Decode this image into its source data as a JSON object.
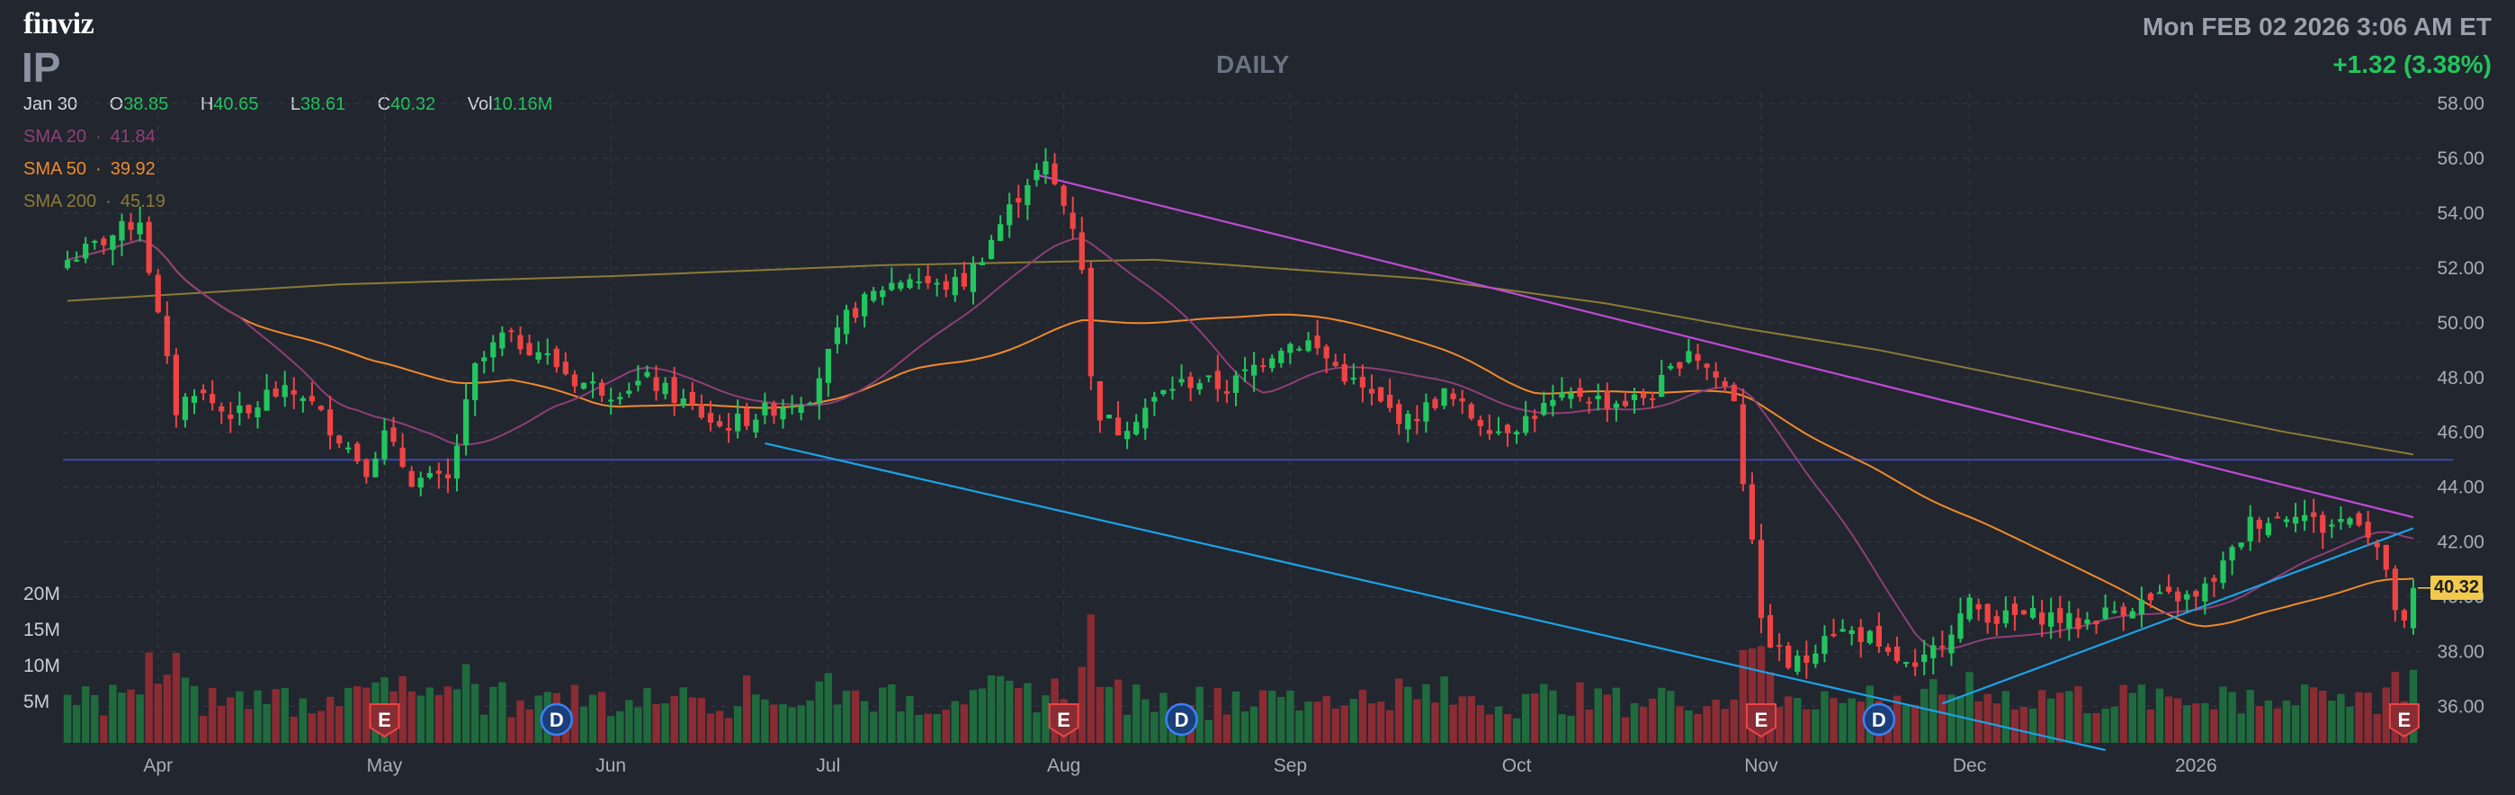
{
  "header": {
    "logo": "finviz",
    "ticker": "IP",
    "period": "DAILY",
    "datetime": "Mon FEB 02 2026 3:06 AM ET",
    "change": "+1.32 (3.38%)"
  },
  "ohlc": {
    "date": "Jan 30",
    "o_label": "O",
    "o": "38.85",
    "h_label": "H",
    "h": "40.65",
    "l_label": "L",
    "l": "38.61",
    "c_label": "C",
    "c": "40.32",
    "vol_label": "Vol",
    "vol": "10.16M"
  },
  "sma": [
    {
      "label": "SMA 20",
      "sep": "·",
      "value": "41.84",
      "color": "#8e3f78"
    },
    {
      "label": "SMA 50",
      "sep": "·",
      "value": "39.92",
      "color": "#f08a2c"
    },
    {
      "label": "SMA 200",
      "sep": "·",
      "value": "45.19",
      "color": "#8c7b36"
    }
  ],
  "price_badge": "40.32",
  "colors": {
    "background": "#22262f",
    "up": "#22c55e",
    "down": "#ef4444",
    "grid": "#343a46",
    "trendline_resistance": "#c04ad6",
    "trendline_support": "#1aa3e8",
    "horizontal_line": "#3b46a8"
  },
  "chart_data": {
    "type": "candlestick",
    "symbol": "IP",
    "timeframe": "DAILY",
    "y_axis": {
      "range": [
        34.6,
        58.4
      ],
      "ticks": [
        "58.00",
        "56.00",
        "54.00",
        "52.00",
        "50.00",
        "48.00",
        "46.00",
        "44.00",
        "42.00",
        "40.00",
        "38.00",
        "36.00"
      ],
      "side": "right"
    },
    "volume_axis": {
      "range": [
        0,
        25
      ],
      "unit": "M",
      "ticks": [
        "20M",
        "15M",
        "10M",
        "5M"
      ]
    },
    "x_axis": {
      "labels": [
        {
          "text": "Apr",
          "index": 10
        },
        {
          "text": "May",
          "index": 35
        },
        {
          "text": "Jun",
          "index": 60
        },
        {
          "text": "Jul",
          "index": 84
        },
        {
          "text": "Aug",
          "index": 110
        },
        {
          "text": "Sep",
          "index": 135
        },
        {
          "text": "Oct",
          "index": 160
        },
        {
          "text": "Nov",
          "index": 187
        },
        {
          "text": "Dec",
          "index": 210
        },
        {
          "text": "2026",
          "index": 235
        }
      ]
    },
    "waypoints": [
      [
        0,
        52.3
      ],
      [
        3,
        52.8
      ],
      [
        5,
        53.2
      ],
      [
        8,
        53.8
      ],
      [
        10,
        50.2
      ],
      [
        12,
        46.8
      ],
      [
        14,
        47.6
      ],
      [
        17,
        46.8
      ],
      [
        20,
        46.6
      ],
      [
        22,
        47.4
      ],
      [
        26,
        47.4
      ],
      [
        29,
        46.2
      ],
      [
        33,
        44.7
      ],
      [
        35,
        45.9
      ],
      [
        38,
        44.3
      ],
      [
        42,
        44.2
      ],
      [
        45,
        48.3
      ],
      [
        48,
        49.5
      ],
      [
        52,
        49.0
      ],
      [
        56,
        47.9
      ],
      [
        60,
        47.5
      ],
      [
        64,
        47.9
      ],
      [
        68,
        47.1
      ],
      [
        72,
        46.2
      ],
      [
        75,
        46.5
      ],
      [
        78,
        46.9
      ],
      [
        82,
        47.4
      ],
      [
        84,
        48.8
      ],
      [
        86,
        50.2
      ],
      [
        90,
        51.3
      ],
      [
        93,
        51.7
      ],
      [
        96,
        51.3
      ],
      [
        99,
        51.5
      ],
      [
        101,
        52.5
      ],
      [
        103,
        53.6
      ],
      [
        106,
        55.2
      ],
      [
        108,
        55.7
      ],
      [
        110,
        54.3
      ],
      [
        111,
        53.6
      ],
      [
        112,
        52.1
      ],
      [
        113,
        47.9
      ],
      [
        114,
        46.7
      ],
      [
        116,
        46.1
      ],
      [
        119,
        46.9
      ],
      [
        122,
        47.7
      ],
      [
        125,
        47.9
      ],
      [
        128,
        47.6
      ],
      [
        131,
        48.4
      ],
      [
        134,
        49.2
      ],
      [
        137,
        49.3
      ],
      [
        140,
        48.4
      ],
      [
        142,
        47.8
      ],
      [
        145,
        47.0
      ],
      [
        148,
        46.4
      ],
      [
        150,
        46.9
      ],
      [
        152,
        47.4
      ],
      [
        155,
        46.6
      ],
      [
        158,
        46.1
      ],
      [
        160,
        46.3
      ],
      [
        163,
        46.9
      ],
      [
        167,
        47.4
      ],
      [
        170,
        47.1
      ],
      [
        172,
        47.1
      ],
      [
        175,
        47.4
      ],
      [
        177,
        48.2
      ],
      [
        179,
        49.1
      ],
      [
        182,
        48.0
      ],
      [
        184,
        47.3
      ],
      [
        185,
        44.3
      ],
      [
        186,
        42.3
      ],
      [
        187,
        38.9
      ],
      [
        188,
        38.4
      ],
      [
        190,
        37.5
      ],
      [
        192,
        37.7
      ],
      [
        194,
        38.8
      ],
      [
        197,
        38.7
      ],
      [
        199,
        38.5
      ],
      [
        200,
        37.9
      ],
      [
        202,
        37.7
      ],
      [
        204,
        37.2
      ],
      [
        205,
        37.6
      ],
      [
        207,
        38.5
      ],
      [
        209,
        39.3
      ],
      [
        210,
        39.7
      ],
      [
        213,
        39.2
      ],
      [
        216,
        39.3
      ],
      [
        219,
        39.3
      ],
      [
        222,
        39.0
      ],
      [
        225,
        39.4
      ],
      [
        228,
        39.7
      ],
      [
        231,
        39.9
      ],
      [
        233,
        40.0
      ],
      [
        235,
        39.9
      ],
      [
        237,
        40.7
      ],
      [
        239,
        41.6
      ],
      [
        241,
        42.7
      ],
      [
        244,
        42.9
      ],
      [
        246,
        43.2
      ],
      [
        249,
        42.5
      ],
      [
        251,
        42.8
      ],
      [
        253,
        42.9
      ],
      [
        255,
        41.8
      ],
      [
        257,
        39.6
      ],
      [
        258,
        38.85
      ],
      [
        259,
        40.32
      ]
    ],
    "last_bar": {
      "date": "Jan 30",
      "open": 38.85,
      "high": 40.65,
      "low": 38.61,
      "close": 40.32,
      "volume_m": 10.16
    },
    "moving_averages": [
      {
        "name": "SMA 20",
        "period": 20,
        "last": 41.84
      },
      {
        "name": "SMA 50",
        "period": 50,
        "last": 39.92
      },
      {
        "name": "SMA 200",
        "period": 200,
        "last": 45.19,
        "waypoints": [
          [
            0,
            50.8
          ],
          [
            30,
            51.4
          ],
          [
            60,
            51.7
          ],
          [
            90,
            52.1
          ],
          [
            120,
            52.3
          ],
          [
            150,
            51.6
          ],
          [
            170,
            50.7
          ],
          [
            185,
            49.8
          ],
          [
            200,
            49.0
          ],
          [
            215,
            48.0
          ],
          [
            230,
            47.0
          ],
          [
            245,
            46.0
          ],
          [
            259,
            45.19
          ]
        ]
      }
    ],
    "trendlines": [
      {
        "name": "resistance",
        "from": [
          107,
          55.4
        ],
        "to": [
          259,
          42.9
        ]
      },
      {
        "name": "support",
        "from": [
          77,
          45.6
        ],
        "to": [
          225,
          34.4
        ]
      },
      {
        "name": "rising-support",
        "from": [
          207,
          36.1
        ],
        "to": [
          259,
          42.5
        ]
      },
      {
        "name": "horizontal",
        "from": [
          0,
          45.0
        ],
        "to": [
          259,
          45.0
        ]
      }
    ],
    "events": [
      {
        "type": "E",
        "index": 35
      },
      {
        "type": "D",
        "index": 54
      },
      {
        "type": "E",
        "index": 110
      },
      {
        "type": "D",
        "index": 123
      },
      {
        "type": "E",
        "index": 187
      },
      {
        "type": "D",
        "index": 200
      },
      {
        "type": "E",
        "index": 258
      }
    ]
  }
}
